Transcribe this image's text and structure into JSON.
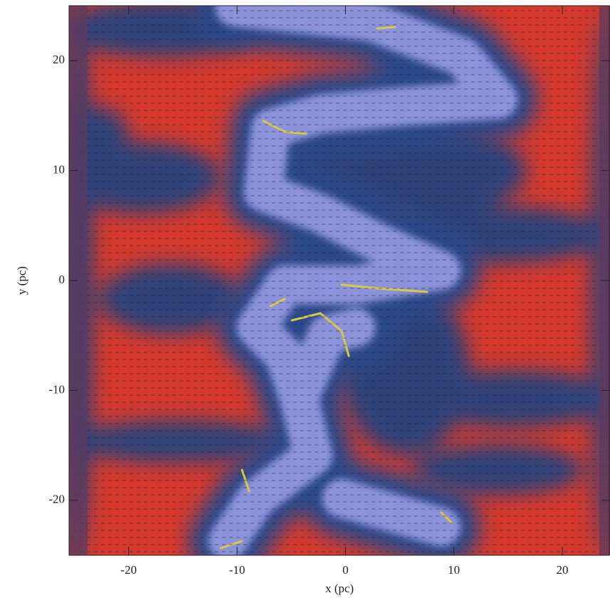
{
  "chart_data": {
    "type": "image",
    "x_label": "x (pc)",
    "y_label": "y (pc)",
    "xlim": [
      -25.5,
      24.4
    ],
    "ylim": [
      -25,
      25
    ],
    "xticks": [
      -20,
      -10,
      0,
      10,
      20
    ],
    "yticks": [
      -20,
      -10,
      0,
      10,
      20
    ]
  }
}
